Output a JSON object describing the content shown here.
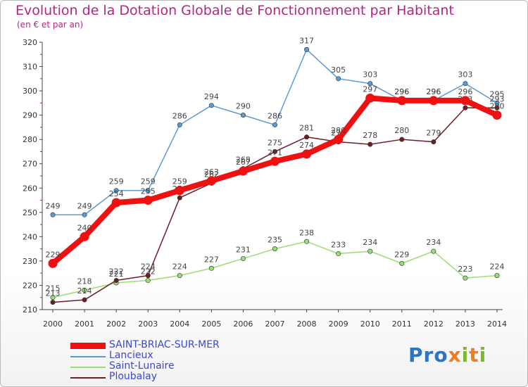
{
  "header": {
    "title": "Evolution de la Dotation Globale de Fonctionnement par Habitant",
    "subtitle": "(en € et par an)"
  },
  "brand": {
    "text": "Proxiti"
  },
  "chart_data": {
    "type": "line",
    "x": [
      "2000",
      "2001",
      "2002",
      "2003",
      "2004",
      "2005",
      "2006",
      "2007",
      "2008",
      "2009",
      "2010",
      "2011",
      "2012",
      "2013",
      "2014"
    ],
    "ylim": [
      210,
      320
    ],
    "yticks": [
      210,
      220,
      230,
      240,
      250,
      260,
      270,
      280,
      290,
      300,
      310,
      320
    ],
    "grid": false,
    "legend_position": "bottom-left",
    "series": [
      {
        "name": "SAINT-BRIAC-SUR-MER",
        "color": "#ee1111",
        "emphasis": true,
        "values": [
          229,
          240,
          254,
          255,
          259,
          263,
          267,
          271,
          274,
          280,
          297,
          296,
          296,
          296,
          290
        ]
      },
      {
        "name": "Lancieux",
        "color": "#5b9bd5",
        "emphasis": false,
        "values": [
          249,
          249,
          259,
          259,
          286,
          294,
          290,
          286,
          317,
          305,
          303,
          296,
          296,
          303,
          295
        ]
      },
      {
        "name": "Saint-Lunaire",
        "color": "#99dd77",
        "emphasis": false,
        "values": [
          215,
          218,
          221,
          222,
          224,
          227,
          231,
          235,
          238,
          233,
          234,
          229,
          234,
          223,
          224
        ]
      },
      {
        "name": "Ploubalay",
        "color": "#6b1f25",
        "emphasis": false,
        "values": [
          213,
          214,
          222,
          224,
          256,
          262,
          268,
          275,
          281,
          279,
          278,
          280,
          279,
          293,
          293
        ]
      }
    ]
  }
}
